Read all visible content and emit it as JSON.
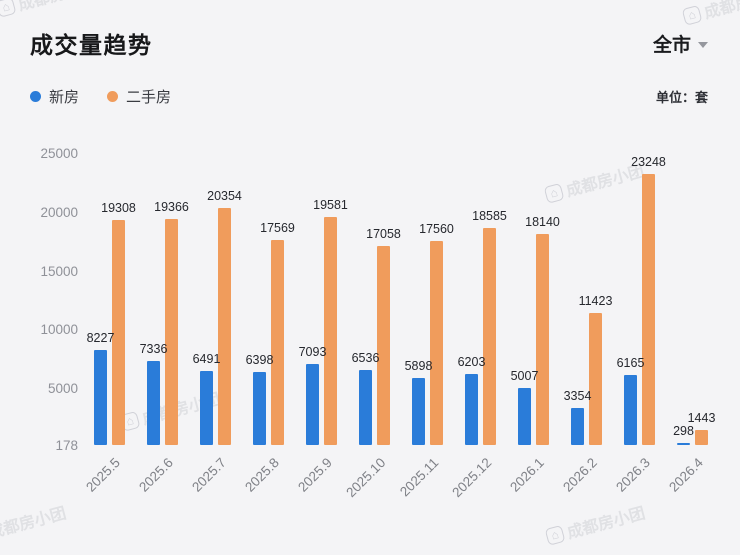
{
  "header": {
    "title": "成交量趋势",
    "city_selector": "全市",
    "unit_label": "单位：套"
  },
  "legend": [
    {
      "label": "新房",
      "color": "#2A7CD9"
    },
    {
      "label": "二手房",
      "color": "#F09C5C"
    }
  ],
  "watermark": {
    "text": "成都房小团"
  },
  "chart_data": {
    "type": "bar",
    "title": "成交量趋势",
    "unit": "套",
    "categories": [
      "2025.5",
      "2025.6",
      "2025.7",
      "2025.8",
      "2025.9",
      "2025.10",
      "2025.11",
      "2025.12",
      "2026.1",
      "2026.2",
      "2026.3",
      "2026.4"
    ],
    "series": [
      {
        "name": "新房",
        "color": "#2A7CD9",
        "values": [
          8227,
          7336,
          6491,
          6398,
          7093,
          6536,
          5898,
          6203,
          5007,
          3354,
          6165,
          298
        ]
      },
      {
        "name": "二手房",
        "color": "#F09C5C",
        "values": [
          19308,
          19366,
          20354,
          17569,
          19581,
          17058,
          17560,
          18585,
          18140,
          11423,
          23248,
          1443
        ]
      }
    ],
    "ylim": [
      178,
      25000
    ],
    "yticks": [
      178,
      5000,
      10000,
      15000,
      20000,
      25000
    ],
    "legend_position": "top-left",
    "grid": false
  }
}
